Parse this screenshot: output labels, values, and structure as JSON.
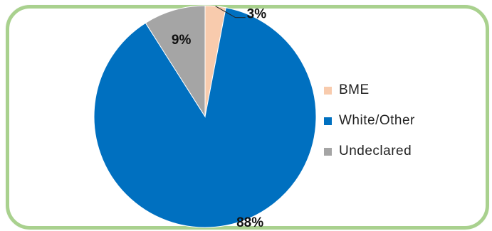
{
  "chart_data": {
    "type": "pie",
    "slices": [
      {
        "label": "BME",
        "value": 3,
        "value_label": "3%",
        "color": "#f8cbad"
      },
      {
        "label": "White/Other",
        "value": 88,
        "value_label": "88%",
        "color": "#0070c0"
      },
      {
        "label": "Undeclared",
        "value": 9,
        "value_label": "9%",
        "color": "#a5a5a5"
      }
    ],
    "start": "12 o'clock",
    "direction": "clockwise",
    "legend_position": "right"
  }
}
